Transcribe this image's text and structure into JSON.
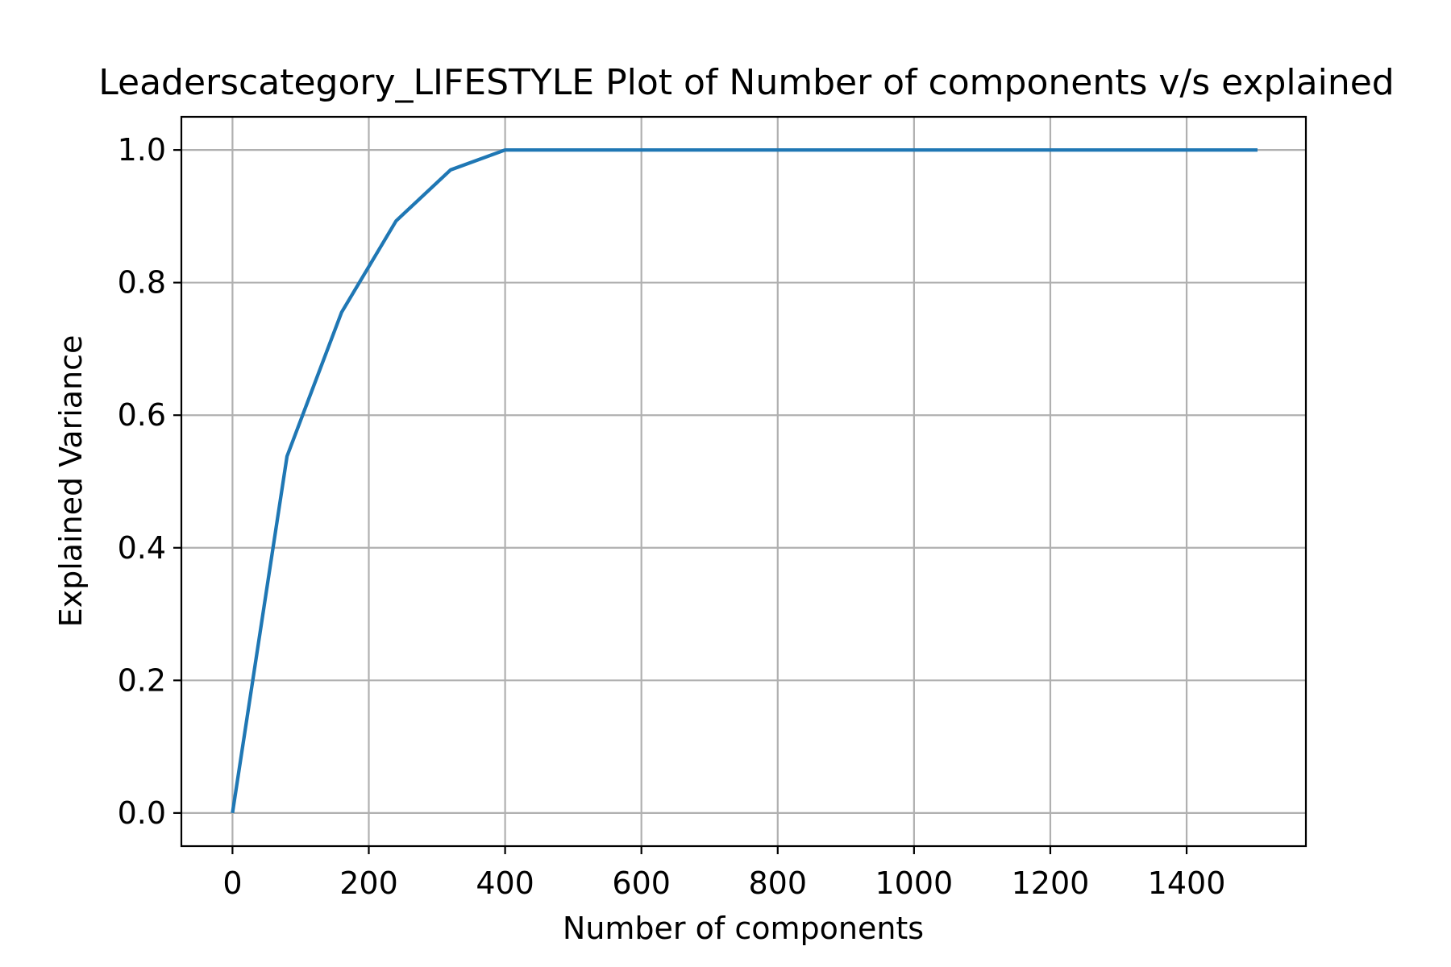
{
  "chart_data": {
    "type": "line",
    "title": "Leaderscategory_LIFESTYLE Plot of Number of components v/s explained",
    "xlabel": "Number of components",
    "ylabel": "Explained Variance",
    "xlim": [
      -75,
      1575
    ],
    "ylim": [
      -0.05,
      1.05
    ],
    "xticks": [
      0,
      200,
      400,
      600,
      800,
      1000,
      1200,
      1400
    ],
    "xtick_labels": [
      "0",
      "200",
      "400",
      "600",
      "800",
      "1000",
      "1200",
      "1400"
    ],
    "yticks": [
      0.0,
      0.2,
      0.4,
      0.6,
      0.8,
      1.0
    ],
    "ytick_labels": [
      "0.0",
      "0.2",
      "0.4",
      "0.6",
      "0.8",
      "1.0"
    ],
    "grid": true,
    "series": [
      {
        "color": "#1f77b4",
        "x": [
          0,
          80,
          160,
          240,
          320,
          400,
          480,
          560,
          640,
          720,
          800,
          880,
          960,
          1040,
          1120,
          1200,
          1280,
          1360,
          1440,
          1504
        ],
        "y": [
          0.0,
          0.538,
          0.755,
          0.893,
          0.97,
          1.0,
          1.0,
          1.0,
          1.0,
          1.0,
          1.0,
          1.0,
          1.0,
          1.0,
          1.0,
          1.0,
          1.0,
          1.0,
          1.0,
          1.0
        ]
      }
    ]
  }
}
